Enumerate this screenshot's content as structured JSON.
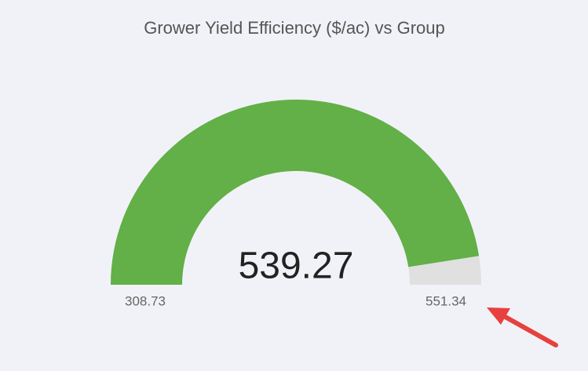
{
  "chart_data": {
    "type": "gauge",
    "title": "Grower Yield Efficiency ($/ac) vs Group",
    "value": 539.27,
    "min": 308.73,
    "max": 551.34,
    "color": "#62b047",
    "track_color": "#e0e0e0"
  }
}
